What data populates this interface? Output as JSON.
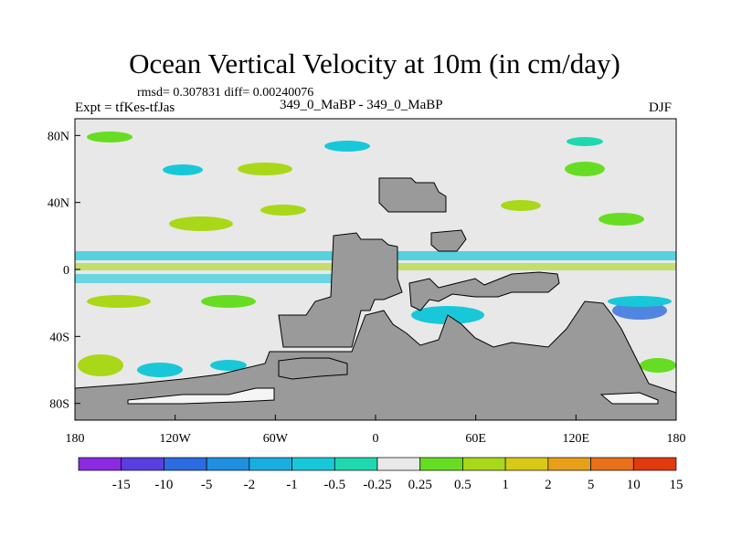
{
  "title": "Ocean Vertical Velocity at 10m (in cm/day)",
  "left_string": "Expt = tfKes-tfJas",
  "stats_string": "rmsd= 0.307831 diff= 0.00240076",
  "center_string": "349_0_MaBP - 349_0_MaBP",
  "right_string": "DJF",
  "chart_data": {
    "type": "heatmap",
    "title": "Ocean Vertical Velocity at 10m (in cm/day)",
    "xlabel": "",
    "ylabel": "",
    "x_ticks": [
      "180",
      "120W",
      "60W",
      "0",
      "60E",
      "120E",
      "180"
    ],
    "y_ticks": [
      "80N",
      "40N",
      "0",
      "40S",
      "80S"
    ],
    "xlim": [
      -180,
      180
    ],
    "ylim": [
      -90,
      90
    ],
    "colorbar": {
      "labels": [
        "-15",
        "-10",
        "-5",
        "-2",
        "-1",
        "-0.5",
        "-0.25",
        "0.25",
        "0.5",
        "1",
        "2",
        "5",
        "10",
        "15"
      ],
      "colors": [
        "#8a2be2",
        "#5a3ee0",
        "#2c6be0",
        "#1f8fe0",
        "#19aee0",
        "#18c8d8",
        "#20d8b0",
        "#e8e8e8",
        "#66dd22",
        "#a8d818",
        "#d8c818",
        "#e8a018",
        "#e87018",
        "#e03a10"
      ]
    },
    "land_color": "#9a9a9a",
    "background_color": "#e8e8e8"
  }
}
